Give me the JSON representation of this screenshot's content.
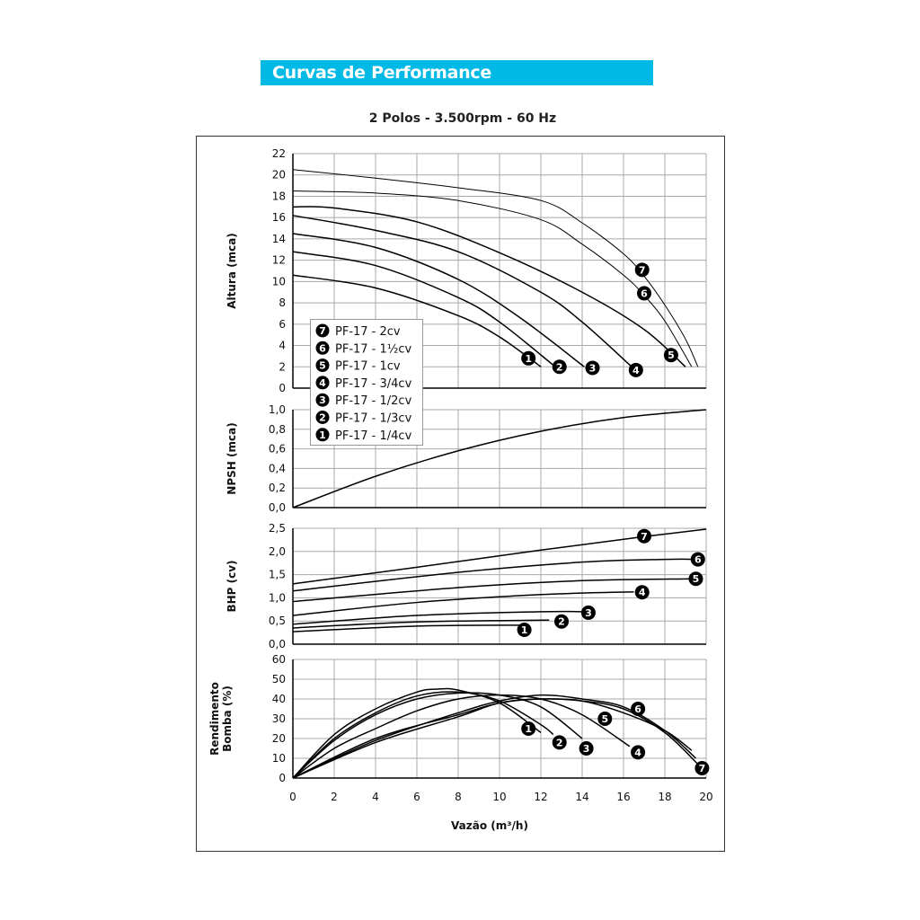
{
  "header": {
    "title": "Curvas de Performance",
    "accent_color": "#00b9e4"
  },
  "chart_data": {
    "type": "line",
    "title": "2 Polos - 3.500rpm - 60 Hz",
    "xlabel": "Vazão (m³/h)",
    "xlim": [
      0,
      20
    ],
    "xticks": [
      "0",
      "2",
      "4",
      "6",
      "8",
      "10",
      "12",
      "14",
      "16",
      "18",
      "20"
    ],
    "grid": true,
    "legend": {
      "placement": "inside top panel, lower-left",
      "entries": [
        {
          "id": "7",
          "label": "PF-17 - 2cv"
        },
        {
          "id": "6",
          "label": "PF-17 - 1½cv"
        },
        {
          "id": "5",
          "label": "PF-17 - 1cv"
        },
        {
          "id": "4",
          "label": "PF-17 - 3/4cv"
        },
        {
          "id": "3",
          "label": "PF-17 - 1/2cv"
        },
        {
          "id": "2",
          "label": "PF-17 - 1/3cv"
        },
        {
          "id": "1",
          "label": "PF-17 - 1/4cv"
        }
      ]
    },
    "panels": [
      {
        "name": "head",
        "ylabel": [
          "Altura (mca)"
        ],
        "ylim": [
          0,
          22
        ],
        "yticks": [
          "0",
          "2",
          "4",
          "6",
          "8",
          "10",
          "12",
          "14",
          "16",
          "18",
          "20",
          "22"
        ],
        "ystep": 2,
        "series": [
          {
            "name": "7",
            "points": [
              [
                0,
                20.5
              ],
              [
                4,
                19.7
              ],
              [
                8,
                18.8
              ],
              [
                12,
                17.6
              ],
              [
                14,
                15.5
              ],
              [
                16,
                12.6
              ],
              [
                17,
                10.5
              ],
              [
                18,
                7.8
              ],
              [
                19,
                4.6
              ],
              [
                19.6,
                2
              ]
            ],
            "marker": [
              16.9,
              11.1
            ]
          },
          {
            "name": "6",
            "points": [
              [
                0,
                18.5
              ],
              [
                4,
                18.3
              ],
              [
                8,
                17.6
              ],
              [
                12,
                15.8
              ],
              [
                14,
                13.5
              ],
              [
                16,
                10.6
              ],
              [
                17,
                8.7
              ],
              [
                18,
                6.3
              ],
              [
                19.3,
                2
              ]
            ],
            "marker": [
              17.0,
              8.9
            ]
          },
          {
            "name": "5",
            "points": [
              [
                0,
                17
              ],
              [
                2,
                16.9
              ],
              [
                6,
                15.6
              ],
              [
                10,
                12.7
              ],
              [
                14,
                9
              ],
              [
                17,
                5.5
              ],
              [
                19,
                2
              ]
            ],
            "marker": [
              18.3,
              3.1
            ]
          },
          {
            "name": "4",
            "points": [
              [
                0,
                16.2
              ],
              [
                4,
                14.8
              ],
              [
                8,
                12.8
              ],
              [
                12,
                9
              ],
              [
                14,
                6.2
              ],
              [
                16.4,
                2
              ]
            ],
            "marker": [
              16.6,
              1.7
            ]
          },
          {
            "name": "3",
            "points": [
              [
                0,
                14.5
              ],
              [
                4,
                13.2
              ],
              [
                8,
                10.2
              ],
              [
                11,
                6.6
              ],
              [
                14.1,
                2
              ]
            ],
            "marker": [
              14.5,
              1.9
            ]
          },
          {
            "name": "2",
            "points": [
              [
                0,
                12.8
              ],
              [
                4,
                11.5
              ],
              [
                8,
                8.5
              ],
              [
                10,
                6.2
              ],
              [
                12.7,
                2
              ]
            ],
            "marker": [
              12.9,
              2.0
            ]
          },
          {
            "name": "1",
            "points": [
              [
                0,
                10.6
              ],
              [
                4,
                9.4
              ],
              [
                8,
                6.8
              ],
              [
                10,
                4.8
              ],
              [
                12,
                2
              ]
            ],
            "marker": [
              11.4,
              2.8
            ]
          }
        ]
      },
      {
        "name": "npsh",
        "ylabel": [
          "NPSH (mca)"
        ],
        "ylim": [
          0,
          1.0
        ],
        "yticks": [
          "0,0",
          "0,2",
          "0,4",
          "0,6",
          "0,8",
          "1,0"
        ],
        "ystep": 0.2,
        "series": [
          {
            "name": "npsh",
            "points": [
              [
                0,
                0
              ],
              [
                4,
                0.32
              ],
              [
                8,
                0.58
              ],
              [
                12,
                0.78
              ],
              [
                16,
                0.92
              ],
              [
                20,
                1.0
              ]
            ]
          }
        ]
      },
      {
        "name": "bhp",
        "ylabel": [
          "BHP (cv)"
        ],
        "ylim": [
          0,
          2.5
        ],
        "yticks": [
          "0,0",
          "0,5",
          "1,0",
          "1,5",
          "2,0",
          "2,5"
        ],
        "ystep": 0.5,
        "series": [
          {
            "name": "7",
            "points": [
              [
                0,
                1.3
              ],
              [
                6,
                1.66
              ],
              [
                12,
                2.03
              ],
              [
                17,
                2.32
              ],
              [
                20,
                2.48
              ]
            ],
            "marker": [
              17.0,
              2.33
            ]
          },
          {
            "name": "6",
            "points": [
              [
                0,
                1.15
              ],
              [
                8,
                1.55
              ],
              [
                14,
                1.77
              ],
              [
                18,
                1.83
              ],
              [
                19.4,
                1.83
              ]
            ],
            "marker": [
              19.6,
              1.83
            ]
          },
          {
            "name": "5",
            "points": [
              [
                0,
                0.92
              ],
              [
                8,
                1.22
              ],
              [
                14,
                1.37
              ],
              [
                19.3,
                1.41
              ]
            ],
            "marker": [
              19.5,
              1.41
            ]
          },
          {
            "name": "4",
            "points": [
              [
                0,
                0.62
              ],
              [
                6,
                0.9
              ],
              [
                12,
                1.07
              ],
              [
                16.5,
                1.13
              ]
            ],
            "marker": [
              16.9,
              1.12
            ]
          },
          {
            "name": "3",
            "points": [
              [
                0,
                0.43
              ],
              [
                6,
                0.62
              ],
              [
                12,
                0.7
              ],
              [
                14,
                0.7
              ]
            ],
            "marker": [
              14.3,
              0.68
            ]
          },
          {
            "name": "2",
            "points": [
              [
                0,
                0.35
              ],
              [
                6,
                0.48
              ],
              [
                12.4,
                0.52
              ]
            ],
            "marker": [
              13.0,
              0.49
            ]
          },
          {
            "name": "1",
            "points": [
              [
                0,
                0.27
              ],
              [
                6,
                0.39
              ],
              [
                11,
                0.41
              ]
            ],
            "marker": [
              11.2,
              0.31
            ]
          }
        ]
      },
      {
        "name": "efficiency",
        "ylabel": [
          "Rendimento",
          "Bomba (%)"
        ],
        "ylim": [
          0,
          60
        ],
        "yticks": [
          "0",
          "10",
          "20",
          "30",
          "40",
          "50",
          "60"
        ],
        "ystep": 10,
        "series": [
          {
            "name": "1",
            "points": [
              [
                0,
                0
              ],
              [
                2,
                22
              ],
              [
                4,
                35
              ],
              [
                6,
                43.5
              ],
              [
                7,
                45
              ],
              [
                8,
                44.5
              ],
              [
                10,
                38
              ],
              [
                12,
                23
              ]
            ],
            "marker": [
              11.4,
              25
            ]
          },
          {
            "name": "2",
            "points": [
              [
                0,
                0
              ],
              [
                2,
                20
              ],
              [
                4,
                33
              ],
              [
                6,
                41.5
              ],
              [
                8,
                43.5
              ],
              [
                10,
                39
              ],
              [
                12,
                27
              ],
              [
                12.6,
                22
              ]
            ],
            "marker": [
              12.9,
              18
            ]
          },
          {
            "name": "3",
            "points": [
              [
                0,
                0
              ],
              [
                2,
                19
              ],
              [
                4,
                32
              ],
              [
                6,
                40
              ],
              [
                8,
                43
              ],
              [
                10,
                42
              ],
              [
                12,
                36
              ],
              [
                14,
                20
              ]
            ],
            "marker": [
              14.2,
              15
            ]
          },
          {
            "name": "4",
            "points": [
              [
                0,
                0
              ],
              [
                2,
                15
              ],
              [
                4,
                25
              ],
              [
                6,
                34
              ],
              [
                8,
                40
              ],
              [
                10,
                42
              ],
              [
                12,
                40
              ],
              [
                14,
                32
              ],
              [
                16.3,
                16
              ]
            ],
            "marker": [
              16.7,
              13
            ]
          },
          {
            "name": "5",
            "points": [
              [
                0,
                0
              ],
              [
                4,
                20
              ],
              [
                8,
                32
              ],
              [
                10,
                38
              ],
              [
                12,
                40
              ],
              [
                14,
                39
              ],
              [
                16,
                33
              ],
              [
                18,
                24
              ],
              [
                19.3,
                14
              ]
            ],
            "marker": [
              15.1,
              30
            ]
          },
          {
            "name": "6",
            "points": [
              [
                0,
                0
              ],
              [
                4,
                19
              ],
              [
                8,
                33
              ],
              [
                10,
                39
              ],
              [
                12,
                42
              ],
              [
                14,
                40
              ],
              [
                16,
                36
              ],
              [
                18,
                24
              ],
              [
                19.5,
                10
              ]
            ],
            "marker": [
              16.7,
              35
            ]
          },
          {
            "name": "7",
            "points": [
              [
                0,
                0
              ],
              [
                4,
                18
              ],
              [
                8,
                31
              ],
              [
                10,
                38
              ],
              [
                12,
                40
              ],
              [
                14,
                39
              ],
              [
                16,
                35
              ],
              [
                18,
                23
              ],
              [
                19.6,
                7
              ]
            ],
            "marker": [
              19.8,
              5
            ]
          }
        ]
      }
    ]
  }
}
